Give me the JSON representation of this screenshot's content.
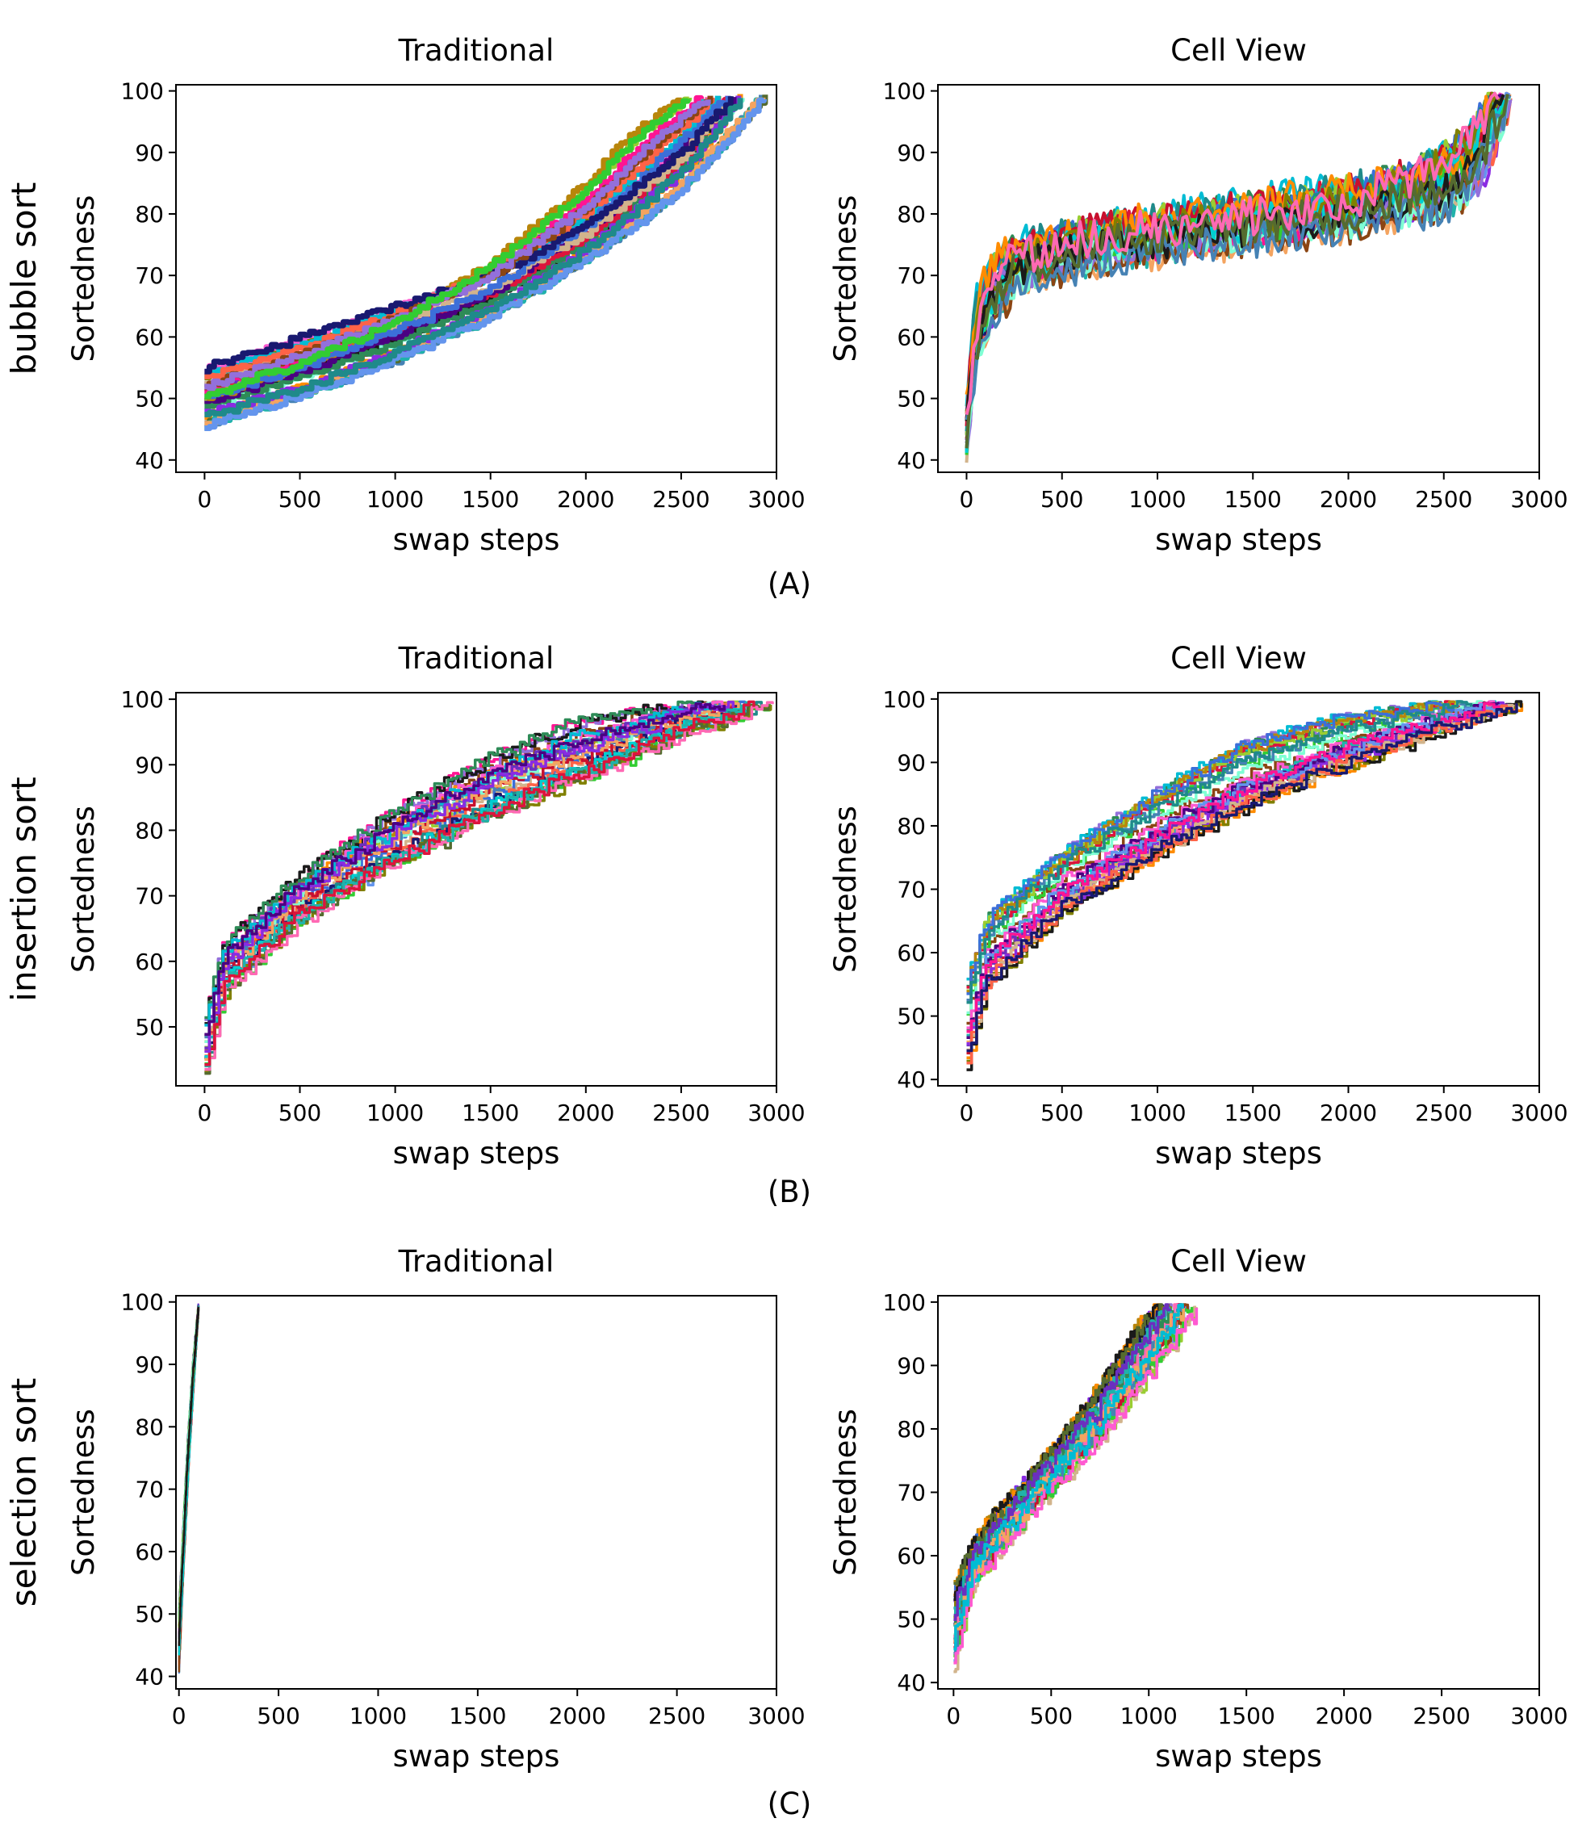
{
  "colors": {
    "palette": [
      "#c8102e",
      "#6b2fbf",
      "#1f8a8a",
      "#ff5ad1",
      "#3c6fd9",
      "#1a1a1a",
      "#9acd32",
      "#ff8c00",
      "#00bcd4",
      "#8b4513",
      "#2e8b57",
      "#ff1493",
      "#4682b4",
      "#b8860b",
      "#7fffd4",
      "#dc143c",
      "#9370db",
      "#20b2aa",
      "#ff6347",
      "#556b2f",
      "#d2b48c",
      "#00ced1",
      "#8a2be2",
      "#32cd32",
      "#f4a460",
      "#191970",
      "#ff69b4",
      "#6495ed",
      "#808000",
      "#4b0082"
    ]
  },
  "chart_data": [
    {
      "id": "bubble-traditional",
      "row": 0,
      "col": 0,
      "type": "line",
      "title": "Traditional",
      "xlabel": "swap steps",
      "ylabel": "Sortedness",
      "xlim": [
        -150,
        3000
      ],
      "ylim": [
        38,
        101
      ],
      "xticks": [
        0,
        500,
        1000,
        1500,
        2000,
        2500,
        3000
      ],
      "yticks": [
        40,
        50,
        60,
        70,
        80,
        90,
        100
      ],
      "series_count": 30,
      "line_width": 7,
      "noise": 0.6,
      "step": true,
      "series": [
        {
          "name": "",
          "x": [
            0,
            500,
            1000,
            1500,
            2000,
            2500,
            2760
          ],
          "y": [
            55,
            60,
            65,
            70,
            78,
            90,
            99
          ]
        },
        {
          "name": "",
          "x": [
            0,
            500,
            1000,
            1500,
            2000,
            2500,
            2750
          ],
          "y": [
            48,
            52,
            58,
            65,
            75,
            88,
            99
          ]
        },
        {
          "name": "",
          "x": [
            0,
            500,
            1000,
            1500,
            2000,
            2500,
            2980
          ],
          "y": [
            45,
            50,
            56,
            63,
            72,
            83,
            99
          ]
        },
        {
          "name": "",
          "x": [
            0,
            500,
            1000,
            1500,
            2000,
            2300,
            2650
          ],
          "y": [
            52,
            57,
            63,
            70,
            81,
            90,
            99
          ]
        },
        {
          "name": "",
          "x": [
            0,
            500,
            1000,
            1500,
            2000,
            2200,
            2500
          ],
          "y": [
            50,
            55,
            62,
            72,
            85,
            92,
            99
          ]
        }
      ]
    },
    {
      "id": "bubble-cell",
      "row": 0,
      "col": 1,
      "type": "line",
      "title": "Cell View",
      "xlabel": "swap steps",
      "ylabel": "Sortedness",
      "xlim": [
        -150,
        3000
      ],
      "ylim": [
        38,
        101
      ],
      "xticks": [
        0,
        500,
        1000,
        1500,
        2000,
        2500,
        3000
      ],
      "yticks": [
        40,
        50,
        60,
        70,
        80,
        90,
        100
      ],
      "series_count": 30,
      "line_width": 4,
      "noise": 3.2,
      "step": false,
      "series": [
        {
          "name": "",
          "x": [
            0,
            50,
            200,
            600,
            1200,
            1800,
            2400,
            2700,
            2850
          ],
          "y": [
            42,
            58,
            70,
            74,
            77,
            79,
            82,
            86,
            99
          ]
        },
        {
          "name": "",
          "x": [
            0,
            60,
            250,
            700,
            1300,
            2000,
            2500,
            2800
          ],
          "y": [
            45,
            62,
            72,
            76,
            78,
            81,
            88,
            99
          ]
        },
        {
          "name": "",
          "x": [
            0,
            40,
            150,
            500,
            1100,
            1700,
            2300,
            2600,
            2750
          ],
          "y": [
            48,
            65,
            74,
            77,
            80,
            83,
            86,
            90,
            99
          ]
        },
        {
          "name": "",
          "x": [
            0,
            80,
            300,
            800,
            1400,
            2100,
            2600,
            2850
          ],
          "y": [
            44,
            60,
            69,
            73,
            75,
            78,
            82,
            99
          ]
        }
      ]
    },
    {
      "id": "insertion-traditional",
      "row": 1,
      "col": 0,
      "type": "line",
      "title": "Traditional",
      "xlabel": "swap steps",
      "ylabel": "Sortedness",
      "xlim": [
        -150,
        3000
      ],
      "ylim": [
        41,
        101
      ],
      "xticks": [
        0,
        500,
        1000,
        1500,
        2000,
        2500,
        3000
      ],
      "yticks": [
        50,
        60,
        70,
        80,
        90,
        100
      ],
      "series_count": 30,
      "line_width": 3.5,
      "noise": 1.2,
      "step": true,
      "series": [
        {
          "name": "",
          "x": [
            0,
            100,
            500,
            1000,
            1500,
            2000,
            2500,
            2980
          ],
          "y": [
            43,
            55,
            66,
            75,
            82,
            88,
            94,
            99
          ]
        },
        {
          "name": "",
          "x": [
            0,
            100,
            500,
            1000,
            1500,
            2000,
            2400,
            2750
          ],
          "y": [
            47,
            60,
            71,
            80,
            88,
            93,
            97,
            99
          ]
        },
        {
          "name": "",
          "x": [
            0,
            100,
            500,
            1000,
            1500,
            1900,
            2300,
            2600
          ],
          "y": [
            52,
            63,
            73,
            83,
            91,
            96,
            98,
            99
          ]
        },
        {
          "name": "",
          "x": [
            0,
            100,
            500,
            1000,
            1500,
            2000,
            2500,
            2800
          ],
          "y": [
            45,
            58,
            68,
            76,
            84,
            90,
            96,
            99
          ]
        }
      ]
    },
    {
      "id": "insertion-cell",
      "row": 1,
      "col": 1,
      "type": "line",
      "title": "Cell View",
      "xlabel": "swap steps",
      "ylabel": "Sortedness",
      "xlim": [
        -150,
        3000
      ],
      "ylim": [
        39,
        101
      ],
      "xticks": [
        0,
        500,
        1000,
        1500,
        2000,
        2500,
        3000
      ],
      "yticks": [
        40,
        50,
        60,
        70,
        80,
        90,
        100
      ],
      "series_count": 30,
      "line_width": 3.5,
      "noise": 1.2,
      "step": true,
      "series": [
        {
          "name": "",
          "x": [
            0,
            100,
            500,
            1000,
            1500,
            2000,
            2500,
            2920
          ],
          "y": [
            42,
            54,
            66,
            75,
            83,
            89,
            95,
            99
          ]
        },
        {
          "name": "",
          "x": [
            0,
            100,
            500,
            1000,
            1500,
            2000,
            2400,
            2700
          ],
          "y": [
            50,
            62,
            73,
            82,
            89,
            94,
            97,
            99
          ]
        },
        {
          "name": "",
          "x": [
            0,
            100,
            500,
            1000,
            1400,
            1900,
            2200,
            2500
          ],
          "y": [
            56,
            66,
            76,
            86,
            93,
            97,
            98,
            99
          ]
        },
        {
          "name": "",
          "x": [
            0,
            100,
            500,
            1000,
            1500,
            2000,
            2500,
            2800
          ],
          "y": [
            46,
            58,
            69,
            78,
            86,
            92,
            96,
            99
          ]
        }
      ]
    },
    {
      "id": "selection-traditional",
      "row": 2,
      "col": 0,
      "type": "line",
      "title": "Traditional",
      "xlabel": "swap steps",
      "ylabel": "Sortedness",
      "xlim": [
        -15,
        3000
      ],
      "ylim": [
        38,
        101
      ],
      "xticks": [
        0,
        500,
        1000,
        1500,
        2000,
        2500,
        3000
      ],
      "yticks": [
        40,
        50,
        60,
        70,
        80,
        90,
        100
      ],
      "series_count": 30,
      "line_width": 2.5,
      "noise": 1.0,
      "step": false,
      "series": [
        {
          "name": "",
          "x": [
            0,
            20,
            50,
            80,
            98
          ],
          "y": [
            40,
            55,
            75,
            90,
            99
          ]
        },
        {
          "name": "",
          "x": [
            0,
            25,
            50,
            75,
            98
          ],
          "y": [
            45,
            60,
            75,
            88,
            99
          ]
        },
        {
          "name": "",
          "x": [
            0,
            20,
            45,
            70,
            98
          ],
          "y": [
            50,
            63,
            78,
            90,
            99
          ]
        }
      ]
    },
    {
      "id": "selection-cell",
      "row": 2,
      "col": 1,
      "type": "line",
      "title": "Cell View",
      "xlabel": "swap steps",
      "ylabel": "Sortedness",
      "xlim": [
        -80,
        3000
      ],
      "ylim": [
        39,
        101
      ],
      "xticks": [
        0,
        500,
        1000,
        1500,
        2000,
        2500,
        3000
      ],
      "yticks": [
        40,
        50,
        60,
        70,
        80,
        90,
        100
      ],
      "series_count": 30,
      "line_width": 3.5,
      "noise": 1.8,
      "step": true,
      "series": [
        {
          "name": "",
          "x": [
            0,
            100,
            300,
            500,
            700,
            900,
            1100,
            1250
          ],
          "y": [
            42,
            55,
            63,
            70,
            76,
            84,
            92,
            99
          ]
        },
        {
          "name": "",
          "x": [
            0,
            100,
            300,
            500,
            700,
            900,
            1050,
            1150
          ],
          "y": [
            48,
            58,
            66,
            73,
            80,
            88,
            95,
            99
          ]
        },
        {
          "name": "",
          "x": [
            0,
            100,
            300,
            500,
            700,
            850,
            950,
            1050
          ],
          "y": [
            55,
            62,
            69,
            76,
            84,
            91,
            96,
            99
          ]
        }
      ]
    }
  ],
  "row_labels": [
    "bubble sort",
    "insertion sort",
    "selection sort"
  ],
  "panel_labels": [
    "(A)",
    "(B)",
    "(C)"
  ]
}
